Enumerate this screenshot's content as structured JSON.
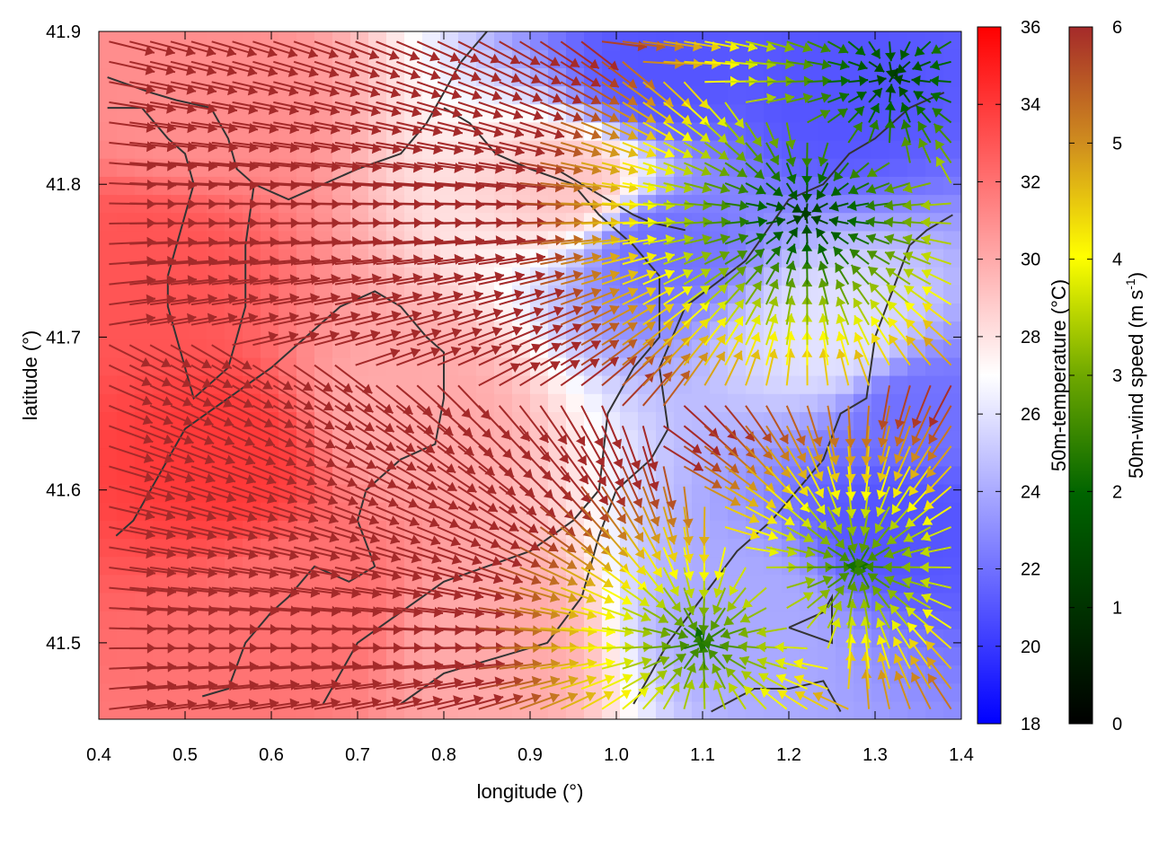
{
  "chart_data": {
    "type": "heatmap",
    "title": "",
    "xlabel": "longitude (°)",
    "ylabel": "latitude (°)",
    "xlim": [
      0.4,
      1.4
    ],
    "ylim": [
      41.45,
      41.9
    ],
    "x_ticks": [
      "0.4",
      "0.5",
      "0.6",
      "0.7",
      "0.8",
      "0.9",
      "1.0",
      "1.1",
      "1.2",
      "1.3",
      "1.4"
    ],
    "y_ticks": [
      "41.5",
      "41.6",
      "41.7",
      "41.8",
      "41.9"
    ],
    "grid": false,
    "colorbars": [
      {
        "label": "50m-temperature (°C)",
        "range": [
          18,
          36
        ],
        "ticks": [
          "18",
          "20",
          "22",
          "24",
          "26",
          "28",
          "30",
          "32",
          "34",
          "36"
        ],
        "colors": [
          "#0000ff",
          "#ffffff",
          "#ff0000"
        ]
      },
      {
        "label_main": "50m-wind speed (m s",
        "label_sup": "-1",
        "label_end": ")",
        "range": [
          0,
          6
        ],
        "ticks": [
          "0",
          "1",
          "2",
          "3",
          "4",
          "5",
          "6"
        ],
        "colors": [
          "#000000",
          "#006400",
          "#6fa800",
          "#ffff00",
          "#d08f1e",
          "#a52a2a"
        ]
      }
    ],
    "temperature_hotspots": [
      {
        "lon": 0.55,
        "lat": 41.62,
        "t": 34
      },
      {
        "lon": 0.65,
        "lat": 41.52,
        "t": 32
      },
      {
        "lon": 0.45,
        "lat": 41.75,
        "t": 33
      },
      {
        "lon": 0.5,
        "lat": 41.85,
        "t": 31
      },
      {
        "lon": 0.75,
        "lat": 41.65,
        "t": 30
      },
      {
        "lon": 0.85,
        "lat": 41.5,
        "t": 30
      },
      {
        "lon": 0.95,
        "lat": 41.8,
        "t": 29
      },
      {
        "lon": 1.05,
        "lat": 41.87,
        "t": 21
      },
      {
        "lon": 1.25,
        "lat": 41.86,
        "t": 21
      },
      {
        "lon": 1.33,
        "lat": 41.58,
        "t": 21
      },
      {
        "lon": 1.35,
        "lat": 41.65,
        "t": 22
      },
      {
        "lon": 1.05,
        "lat": 41.76,
        "t": 22
      },
      {
        "lon": 1.15,
        "lat": 41.52,
        "t": 24
      },
      {
        "lon": 1.25,
        "lat": 41.7,
        "t": 26
      }
    ],
    "wind_sources": [
      {
        "lon": 1.28,
        "lat": 41.55,
        "speed": 2
      },
      {
        "lon": 1.22,
        "lat": 41.78,
        "speed": 1
      },
      {
        "lon": 1.32,
        "lat": 41.87,
        "speed": 1
      },
      {
        "lon": 1.1,
        "lat": 41.5,
        "speed": 2
      }
    ]
  }
}
